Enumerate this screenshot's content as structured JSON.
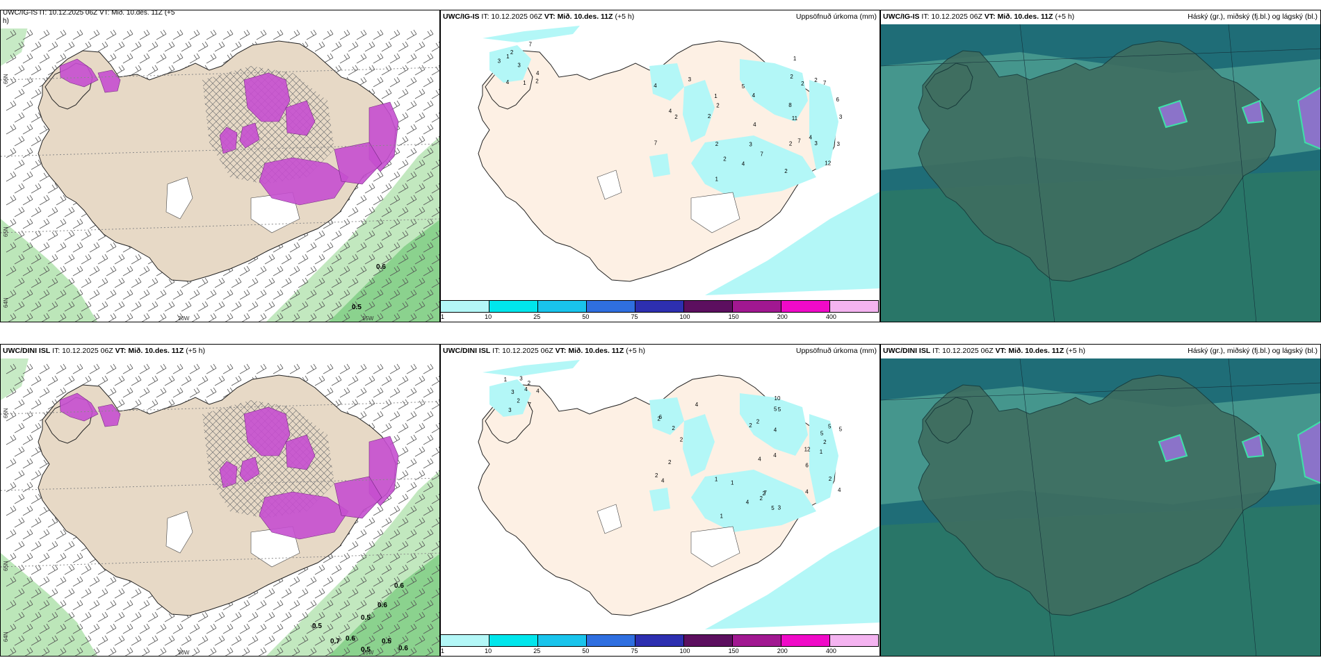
{
  "rows": [
    {
      "model": "UWC/IG-IS",
      "it": "IT: 10.12.2025 06Z",
      "vt_label": "VT:",
      "vt": "Mið. 10.des. 11Z",
      "lead": "(+5 h)",
      "left_hdr_line1": "UWC/IG-IS IT: 10.12.2025 06Z VT: Mið. 10.des. 11Z (+5",
      "left_hdr_line2": "h)",
      "precip_title": "Uppsöfnuð úrkoma (mm)",
      "cloud_title": "Háský (gr.), miðský (fj.bl.) og lágský (bl.)",
      "lat_labels": [
        "66N",
        "65N",
        "64N"
      ],
      "lon_labels": [
        "20W",
        "15W"
      ],
      "precip_marks": [
        "0.6",
        "0.5"
      ],
      "accum_labels": [
        "2",
        "1",
        "2",
        "3",
        "4",
        "4",
        "2",
        "1",
        "3",
        "2",
        "1",
        "2",
        "2",
        "3",
        "1",
        "3",
        "4",
        "5",
        "2",
        "3",
        "2",
        "3",
        "4",
        "4",
        "7",
        "7",
        "7",
        "11",
        "12",
        "7",
        "4",
        "2",
        "4",
        "7",
        "2",
        "3",
        "2",
        "8",
        "6",
        "2",
        "1",
        "4"
      ]
    },
    {
      "model": "UWC/DINI ISL",
      "it": "IT: 10.12.2025 06Z",
      "vt_label": "VT:",
      "vt": "Mið. 10.des. 11Z",
      "lead": "(+5 h)",
      "precip_title": "Uppsöfnuð úrkoma (mm)",
      "cloud_title": "Háský (gr.), miðský (fj.bl.) og lágský (bl.)",
      "lat_labels": [
        "66N",
        "65N",
        "64N"
      ],
      "lon_labels": [
        "20W",
        "15W"
      ],
      "precip_marks": [
        "0.6",
        "0.6",
        "0.5",
        "0.5",
        "0.7",
        "0.6",
        "0.5",
        "0.5",
        "0.6"
      ],
      "accum_labels": [
        "2",
        "2",
        "4",
        "4",
        "2",
        "3",
        "4",
        "5",
        "5",
        "2",
        "1",
        "1",
        "2",
        "5",
        "4",
        "4",
        "4",
        "5",
        "2",
        "1",
        "3",
        "2",
        "4",
        "5",
        "7",
        "7",
        "6",
        "10",
        "12",
        "5",
        "4",
        "2",
        "4",
        "1",
        "1",
        "2",
        "2",
        "6",
        "4",
        "3",
        "3",
        "2",
        "2",
        "2"
      ]
    }
  ],
  "colorbar": {
    "ticks": [
      "1",
      "10",
      "25",
      "50",
      "75",
      "100",
      "150",
      "200",
      "400"
    ],
    "colors": [
      "#b3f7f7",
      "#00e6ec",
      "#19c4ec",
      "#2f6fe0",
      "#2d2fb0",
      "#5c0f5f",
      "#a11891",
      "#f00ac8",
      "#f4b3f0"
    ]
  },
  "colors": {
    "land": "#e7d9c6",
    "precip_land": "#fdf0e4",
    "pink": "#c64fd0",
    "green": "#8fd68b",
    "cyan": "#b3f7f7",
    "cloud_bg": "#1f6d77"
  }
}
